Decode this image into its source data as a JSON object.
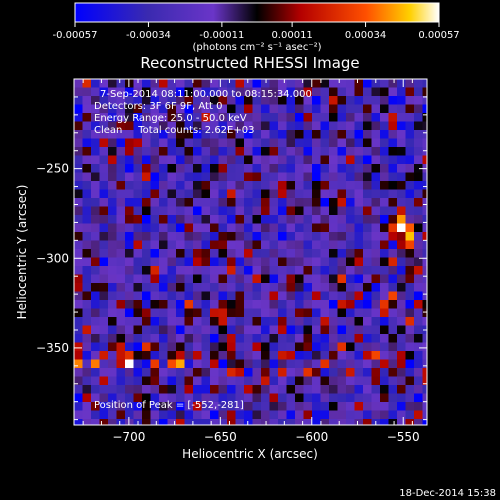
{
  "colorbar": {
    "ticks": [
      "-0.00057",
      "-0.00034",
      "-0.00011",
      "0.00011",
      "0.00034",
      "0.00057"
    ],
    "unit_label": "(photons cm⁻² s⁻¹ asec⁻²)",
    "range": [
      -0.00057,
      0.00057
    ]
  },
  "footer": {
    "timestamp": "18-Dec-2014 15:38"
  },
  "chart_data": {
    "type": "heatmap",
    "title": "Reconstructed RHESSI Image",
    "xlabel": "Heliocentric X (arcsec)",
    "ylabel": "Heliocentric Y (arcsec)",
    "xlim": [
      -730,
      -537
    ],
    "ylim": [
      -393,
      -200
    ],
    "x_ticks": [
      -700,
      -650,
      -600,
      -550
    ],
    "y_ticks": [
      -250,
      -300,
      -350
    ],
    "annotations": [
      "7-Sep-2014 08:11:00.000 to 08:15:34.000",
      "Detectors: 3F 6F 9F, Att 0",
      "Energy Range: 25.0 - 50.0 keV",
      "Clean     Total counts: 2.62E+03"
    ],
    "peak_label": "Position of Peak = [-552,-281]",
    "peak": [
      -552,
      -281
    ]
  }
}
